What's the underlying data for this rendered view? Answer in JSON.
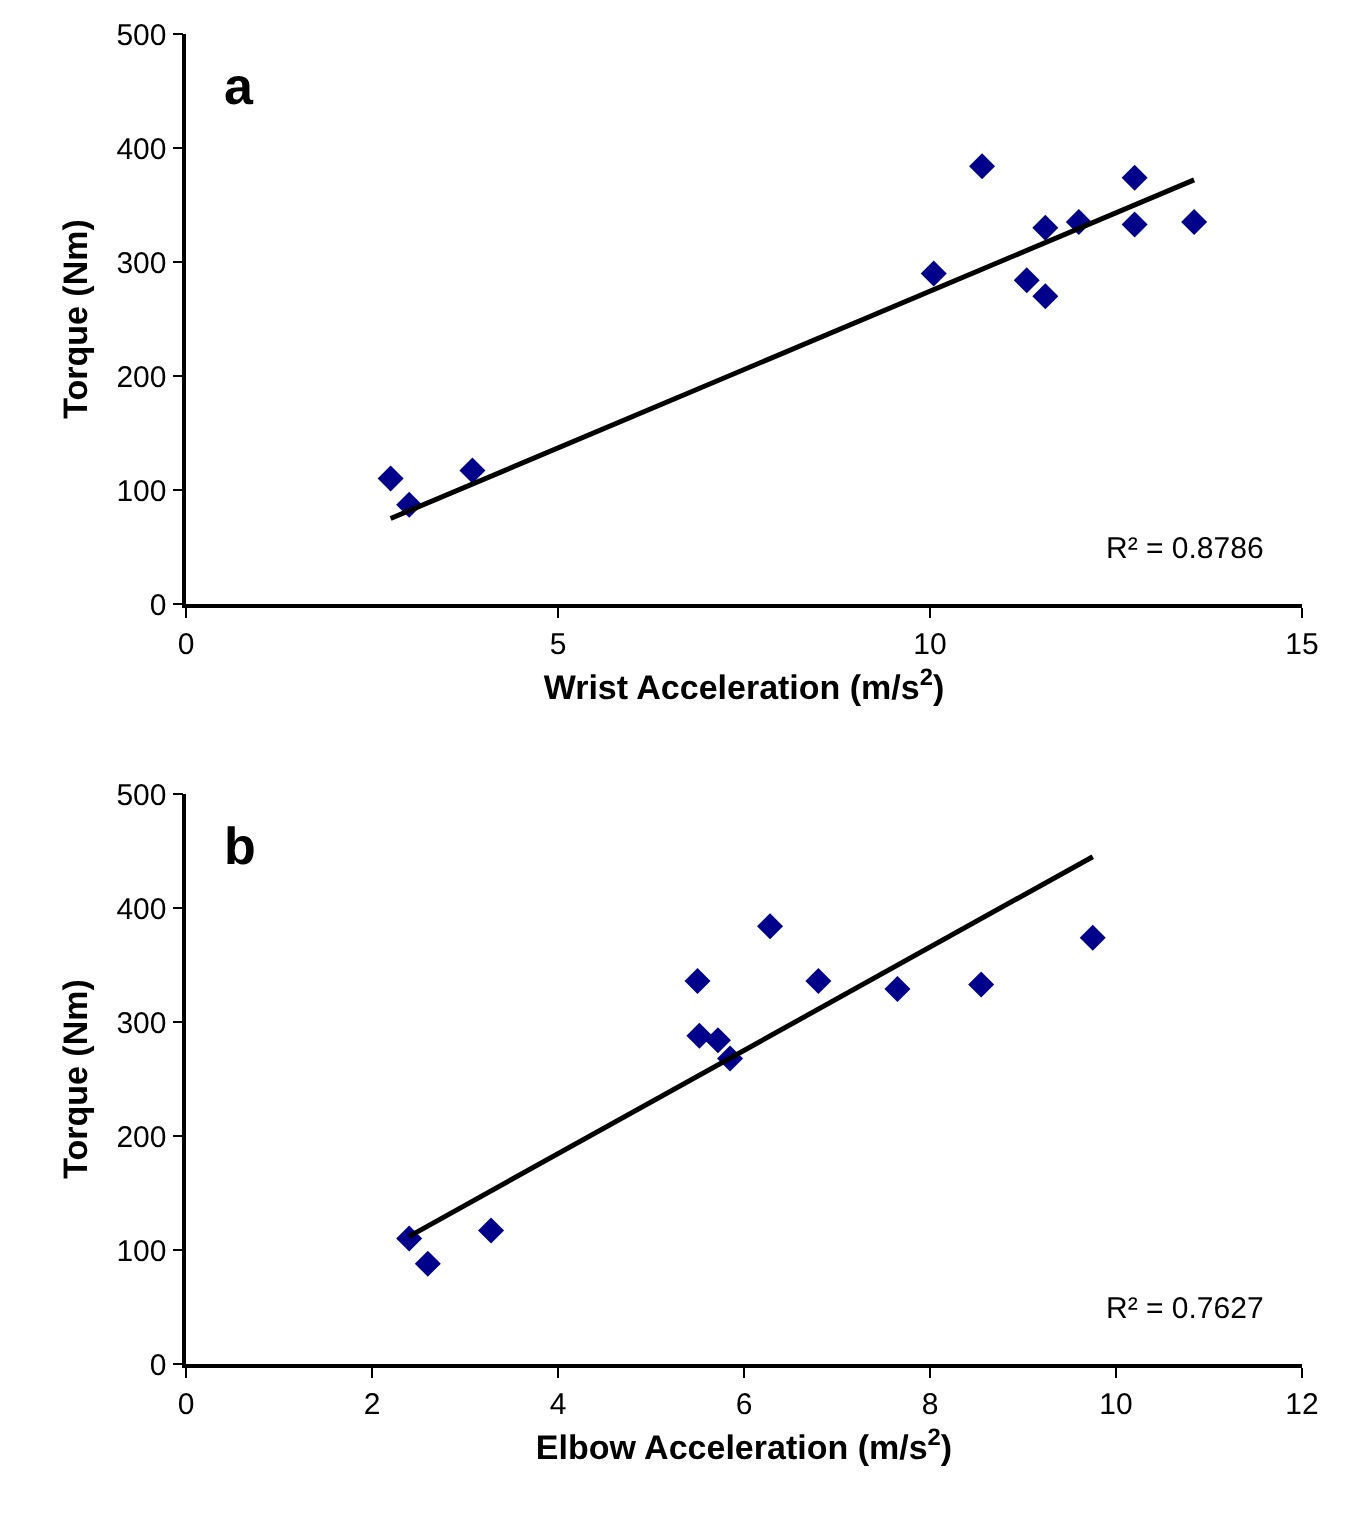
{
  "chart_data": [
    {
      "type": "scatter",
      "xlabel": "Wrist Acceleration (m/s$^{2}$)",
      "ylabel": "Torque (Nm)",
      "annotations": [
        "a",
        "R² = 0.8786"
      ],
      "marker": "diamond",
      "grid": false,
      "xlim": [
        0,
        15
      ],
      "xticks": [
        0,
        5,
        10,
        15
      ],
      "ylim": [
        0,
        500
      ],
      "yticks": [
        0,
        100,
        200,
        300,
        400,
        500
      ],
      "series": [
        {
          "color": "#00008b",
          "x": [
            2.75,
            3.0,
            3.85,
            10.05,
            10.7,
            11.3,
            11.55,
            11.55,
            12.0,
            12.75,
            12.75,
            13.55
          ],
          "values": [
            110,
            87,
            117,
            290,
            384,
            284,
            270,
            330,
            335,
            374,
            333,
            335
          ]
        },
        {
          "type": "line",
          "color": "#000000",
          "line_style": "solid",
          "marker": "none",
          "x": [
            2.75,
            13.55
          ],
          "values": [
            75,
            372
          ]
        }
      ]
    },
    {
      "type": "scatter",
      "xlabel": "Elbow Acceleration (m/s$^{2}$)",
      "ylabel": "Torque (Nm)",
      "annotations": [
        "b",
        "R² = 0.7627"
      ],
      "marker": "diamond",
      "grid": false,
      "xlim": [
        0,
        12
      ],
      "xticks": [
        0,
        2,
        4,
        6,
        8,
        10,
        12
      ],
      "ylim": [
        0,
        500
      ],
      "yticks": [
        0,
        100,
        200,
        300,
        400,
        500
      ],
      "series": [
        {
          "color": "#00008b",
          "x": [
            2.4,
            2.6,
            3.28,
            5.5,
            5.52,
            5.72,
            5.85,
            6.28,
            6.8,
            7.65,
            8.55,
            9.75
          ],
          "values": [
            110,
            88,
            117,
            336,
            288,
            284,
            268,
            384,
            336,
            329,
            333,
            374
          ]
        },
        {
          "type": "line",
          "color": "#000000",
          "line_style": "solid",
          "marker": "none",
          "x": [
            2.4,
            9.75
          ],
          "values": [
            112,
            445
          ]
        }
      ]
    }
  ]
}
